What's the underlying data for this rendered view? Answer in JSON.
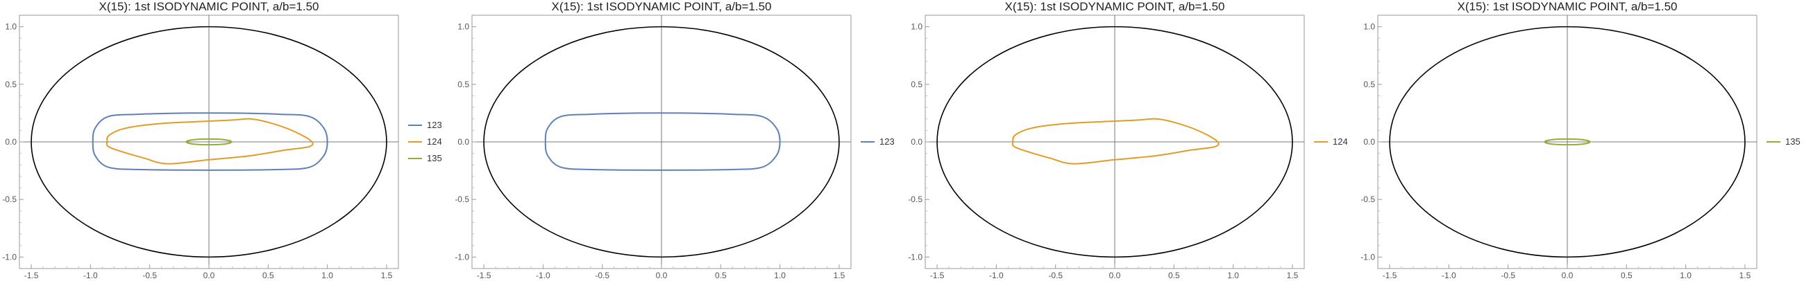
{
  "chart_data": [
    {
      "type": "line",
      "title": "X(15): 1st ISODYNAMIC POINT, a/b=1.50",
      "xlim": [
        -1.6,
        1.6
      ],
      "ylim": [
        -1.1,
        1.1
      ],
      "x_ticks": [
        "-1.5",
        "-1.0",
        "-0.5",
        "0.0",
        "0.5",
        "1.0",
        "1.5"
      ],
      "y_ticks": [
        "-1.0",
        "-0.5",
        "0.0",
        "0.5",
        "1.0"
      ],
      "ellipse": {
        "a": 1.5,
        "b": 1.0,
        "color": "#000000"
      },
      "legend_position": "right",
      "series": [
        {
          "name": "123",
          "color": "#5E81B5",
          "points": [
            [
              -0.98,
              0.0
            ],
            [
              -0.96,
              0.12
            ],
            [
              -0.85,
              0.22
            ],
            [
              -0.6,
              0.24
            ],
            [
              -0.2,
              0.25
            ],
            [
              0.2,
              0.25
            ],
            [
              0.6,
              0.24
            ],
            [
              0.85,
              0.22
            ],
            [
              0.97,
              0.12
            ],
            [
              1.0,
              0.0
            ],
            [
              0.97,
              -0.12
            ],
            [
              0.85,
              -0.22
            ],
            [
              0.6,
              -0.24
            ],
            [
              0.2,
              -0.245
            ],
            [
              -0.2,
              -0.245
            ],
            [
              -0.6,
              -0.24
            ],
            [
              -0.85,
              -0.22
            ],
            [
              -0.96,
              -0.12
            ],
            [
              -0.98,
              0.0
            ]
          ]
        },
        {
          "name": "124",
          "color": "#E19C24",
          "points": [
            [
              -0.86,
              0.0
            ],
            [
              -0.84,
              0.06
            ],
            [
              -0.7,
              0.12
            ],
            [
              -0.4,
              0.16
            ],
            [
              0.0,
              0.18
            ],
            [
              0.2,
              0.19
            ],
            [
              0.35,
              0.2
            ],
            [
              0.5,
              0.17
            ],
            [
              0.7,
              0.1
            ],
            [
              0.86,
              0.01
            ],
            [
              0.85,
              -0.04
            ],
            [
              0.65,
              -0.07
            ],
            [
              0.35,
              -0.12
            ],
            [
              0.0,
              -0.155
            ],
            [
              -0.35,
              -0.19
            ],
            [
              -0.55,
              -0.14
            ],
            [
              -0.75,
              -0.08
            ],
            [
              -0.85,
              -0.04
            ],
            [
              -0.86,
              0.0
            ]
          ]
        },
        {
          "name": "135",
          "color": "#8FB032",
          "points": [
            [
              -0.19,
              0.0
            ],
            [
              -0.17,
              0.012
            ],
            [
              -0.1,
              0.022
            ],
            [
              0.0,
              0.025
            ],
            [
              0.1,
              0.022
            ],
            [
              0.17,
              0.012
            ],
            [
              0.19,
              0.0
            ],
            [
              0.17,
              -0.012
            ],
            [
              0.1,
              -0.022
            ],
            [
              0.0,
              -0.025
            ],
            [
              -0.1,
              -0.022
            ],
            [
              -0.17,
              -0.012
            ],
            [
              -0.19,
              0.0
            ]
          ]
        }
      ]
    },
    {
      "type": "line",
      "title": "X(15): 1st ISODYNAMIC POINT, a/b=1.50",
      "xlim": [
        -1.6,
        1.6
      ],
      "ylim": [
        -1.1,
        1.1
      ],
      "x_ticks": [
        "-1.5",
        "-1.0",
        "-0.5",
        "0.0",
        "0.5",
        "1.0",
        "1.5"
      ],
      "y_ticks": [
        "-1.0",
        "-0.5",
        "0.0",
        "0.5",
        "1.0"
      ],
      "ellipse": {
        "a": 1.5,
        "b": 1.0,
        "color": "#000000"
      },
      "legend_position": "right",
      "series": [
        {
          "name": "123",
          "color": "#5E81B5",
          "points": [
            [
              -0.98,
              0.0
            ],
            [
              -0.96,
              0.12
            ],
            [
              -0.85,
              0.22
            ],
            [
              -0.6,
              0.24
            ],
            [
              -0.2,
              0.25
            ],
            [
              0.2,
              0.25
            ],
            [
              0.6,
              0.24
            ],
            [
              0.85,
              0.22
            ],
            [
              0.97,
              0.12
            ],
            [
              1.0,
              0.0
            ],
            [
              0.97,
              -0.12
            ],
            [
              0.85,
              -0.22
            ],
            [
              0.6,
              -0.24
            ],
            [
              0.2,
              -0.245
            ],
            [
              -0.2,
              -0.245
            ],
            [
              -0.6,
              -0.24
            ],
            [
              -0.85,
              -0.22
            ],
            [
              -0.96,
              -0.12
            ],
            [
              -0.98,
              0.0
            ]
          ]
        }
      ]
    },
    {
      "type": "line",
      "title": "X(15): 1st ISODYNAMIC POINT, a/b=1.50",
      "xlim": [
        -1.6,
        1.6
      ],
      "ylim": [
        -1.1,
        1.1
      ],
      "x_ticks": [
        "-1.5",
        "-1.0",
        "-0.5",
        "0.0",
        "0.5",
        "1.0",
        "1.5"
      ],
      "y_ticks": [
        "-1.0",
        "-0.5",
        "0.0",
        "0.5",
        "1.0"
      ],
      "ellipse": {
        "a": 1.5,
        "b": 1.0,
        "color": "#000000"
      },
      "legend_position": "right",
      "series": [
        {
          "name": "124",
          "color": "#E19C24",
          "points": [
            [
              -0.86,
              0.0
            ],
            [
              -0.84,
              0.06
            ],
            [
              -0.7,
              0.12
            ],
            [
              -0.4,
              0.16
            ],
            [
              0.0,
              0.18
            ],
            [
              0.2,
              0.19
            ],
            [
              0.35,
              0.2
            ],
            [
              0.5,
              0.17
            ],
            [
              0.7,
              0.1
            ],
            [
              0.86,
              0.01
            ],
            [
              0.85,
              -0.04
            ],
            [
              0.65,
              -0.07
            ],
            [
              0.35,
              -0.12
            ],
            [
              0.0,
              -0.155
            ],
            [
              -0.35,
              -0.19
            ],
            [
              -0.55,
              -0.14
            ],
            [
              -0.75,
              -0.08
            ],
            [
              -0.85,
              -0.04
            ],
            [
              -0.86,
              0.0
            ]
          ]
        }
      ]
    },
    {
      "type": "line",
      "title": "X(15): 1st ISODYNAMIC POINT, a/b=1.50",
      "xlim": [
        -1.6,
        1.6
      ],
      "ylim": [
        -1.1,
        1.1
      ],
      "x_ticks": [
        "-1.5",
        "-1.0",
        "-0.5",
        "0.0",
        "0.5",
        "1.0",
        "1.5"
      ],
      "y_ticks": [
        "-1.0",
        "-0.5",
        "0.0",
        "0.5",
        "1.0"
      ],
      "ellipse": {
        "a": 1.5,
        "b": 1.0,
        "color": "#000000"
      },
      "legend_position": "right",
      "series": [
        {
          "name": "135",
          "color": "#8FB032",
          "points": [
            [
              -0.19,
              0.0
            ],
            [
              -0.17,
              0.012
            ],
            [
              -0.1,
              0.022
            ],
            [
              0.0,
              0.025
            ],
            [
              0.1,
              0.022
            ],
            [
              0.17,
              0.012
            ],
            [
              0.19,
              0.0
            ],
            [
              0.17,
              -0.012
            ],
            [
              0.1,
              -0.022
            ],
            [
              0.0,
              -0.025
            ],
            [
              -0.1,
              -0.022
            ],
            [
              -0.17,
              -0.012
            ],
            [
              -0.19,
              0.0
            ]
          ]
        }
      ]
    }
  ]
}
